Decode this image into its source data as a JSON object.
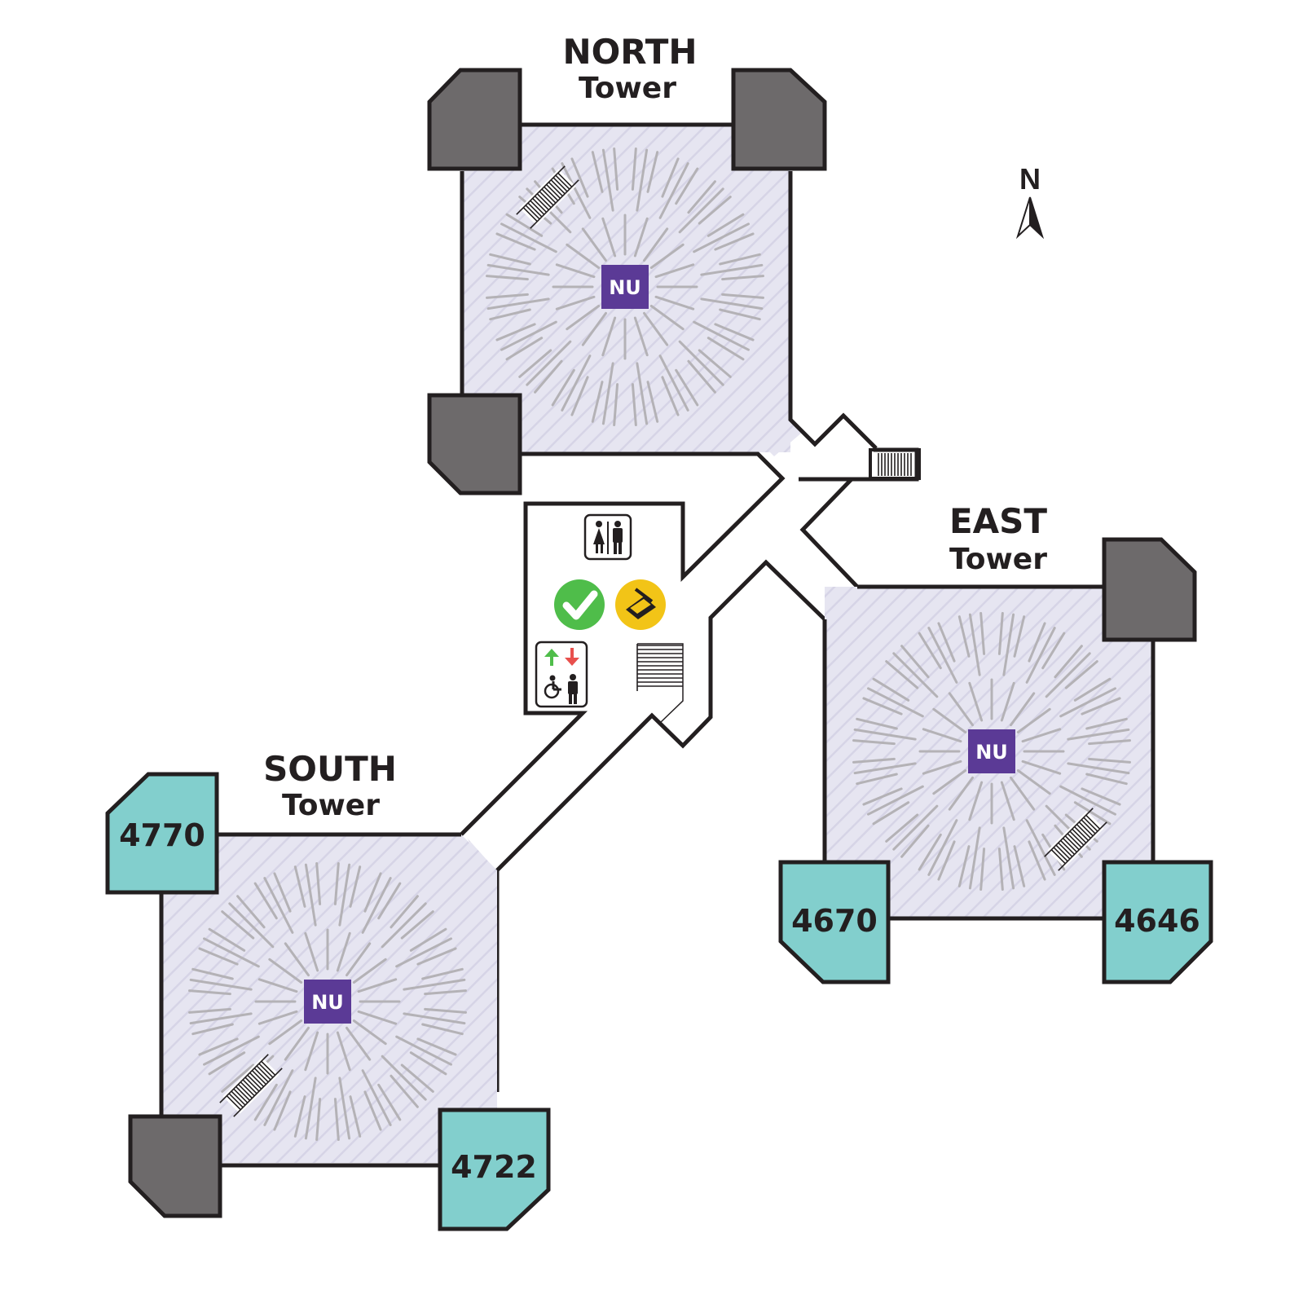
{
  "towers": {
    "north": {
      "line1": "NORTH",
      "line2": "Tower",
      "center_label": "NU"
    },
    "east": {
      "line1": "EAST",
      "line2": "Tower",
      "center_label": "NU"
    },
    "south": {
      "line1": "SOUTH",
      "line2": "Tower",
      "center_label": "NU"
    }
  },
  "rooms": {
    "r4770": "4770",
    "r4670": "4670",
    "r4646": "4646",
    "r4722": "4722"
  },
  "compass": {
    "label": "N"
  },
  "amenities": [
    "restroom-icon",
    "checkmark-icon",
    "scanner-icon",
    "elevator-icon"
  ],
  "colors": {
    "tower_fill": "#e6e5f1",
    "room_fill": "#82cfcd",
    "corner_fill": "#6d6a6b",
    "nu_badge": "#5b3a96",
    "wall": "#231f20",
    "check_green": "#4fbd4a",
    "scanner_yellow": "#f2c417",
    "arrow_up": "#4fbd4a",
    "arrow_down": "#e8504d"
  }
}
